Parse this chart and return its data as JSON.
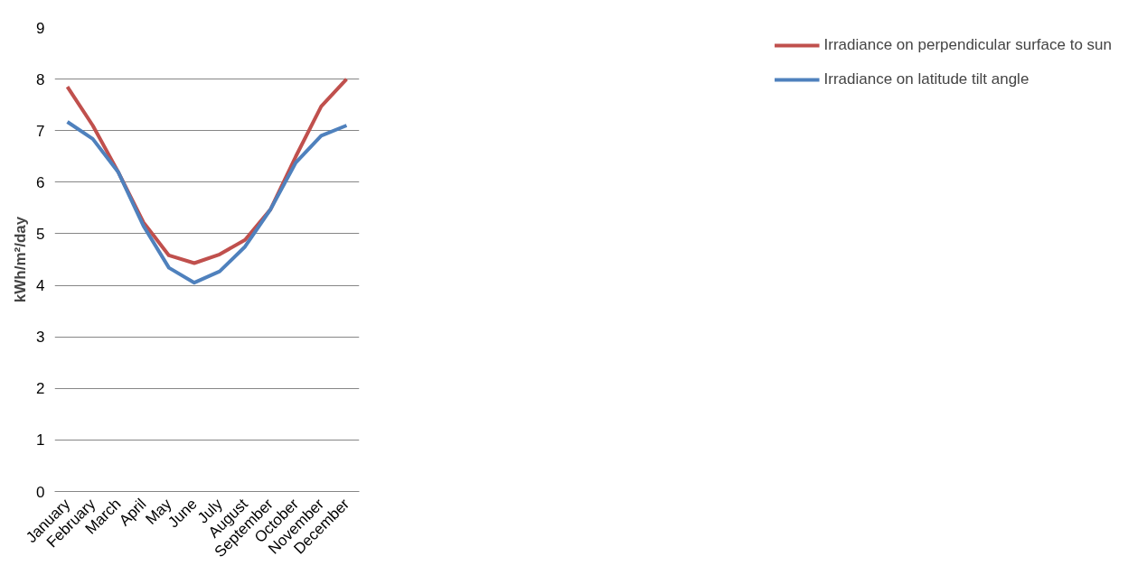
{
  "chart_data": {
    "type": "line",
    "ylabel": "kWh/m²/day",
    "categories": [
      "January",
      "February",
      "March",
      "April",
      "May",
      "June",
      "July",
      "August",
      "September",
      "October",
      "November",
      "December"
    ],
    "series": [
      {
        "name": "Irradiance on perpendicular surface to sun",
        "color": "#c0504d",
        "values": [
          7.85,
          7.1,
          6.2,
          5.22,
          4.58,
          4.43,
          4.6,
          4.88,
          5.47,
          6.5,
          7.47,
          8.0
        ]
      },
      {
        "name": "Irradiance on latitude tilt angle",
        "color": "#4f81bd",
        "values": [
          7.17,
          6.84,
          6.2,
          5.15,
          4.34,
          4.05,
          4.27,
          4.75,
          5.47,
          6.38,
          6.9,
          7.1
        ]
      }
    ],
    "ylim": [
      0,
      9
    ],
    "yticks": [
      0,
      1,
      2,
      3,
      4,
      5,
      6,
      7,
      8,
      9
    ],
    "grid": "y",
    "legend": "right",
    "line_style": "solid"
  }
}
